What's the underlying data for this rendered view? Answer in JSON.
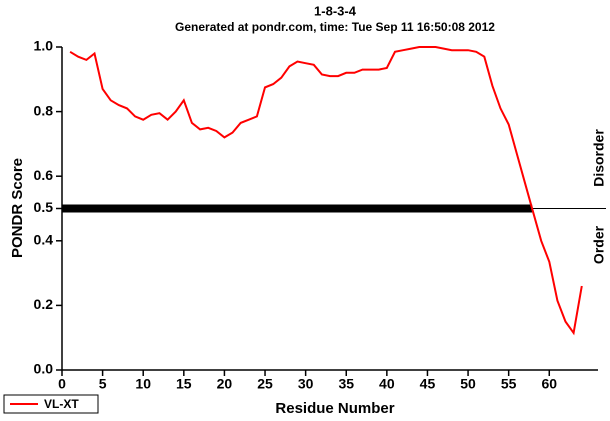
{
  "chart_data": {
    "type": "line",
    "title": "1-8-3-4",
    "subtitle": "Generated at pondr.com, time: Tue Sep 11 16:50:08 2012",
    "x_label": "Residue Number",
    "y_label": "PONDR Score",
    "upper_label": "Disorder",
    "lower_label": "Order",
    "threshold": 0.5,
    "x": [
      1,
      2,
      3,
      4,
      5,
      6,
      7,
      8,
      9,
      10,
      11,
      12,
      13,
      14,
      15,
      16,
      17,
      18,
      19,
      20,
      21,
      22,
      23,
      24,
      25,
      26,
      27,
      28,
      29,
      30,
      31,
      32,
      33,
      34,
      35,
      36,
      37,
      38,
      39,
      40,
      41,
      42,
      43,
      44,
      45,
      46,
      47,
      48,
      49,
      50,
      51,
      52,
      53,
      54,
      55,
      56,
      57,
      58,
      59,
      60,
      61,
      62,
      63,
      64
    ],
    "series": [
      {
        "name": "VL-XT",
        "color": "#ff0000",
        "values": [
          0.985,
          0.97,
          0.96,
          0.98,
          0.87,
          0.835,
          0.82,
          0.81,
          0.785,
          0.775,
          0.79,
          0.795,
          0.775,
          0.8,
          0.835,
          0.765,
          0.745,
          0.75,
          0.74,
          0.72,
          0.735,
          0.765,
          0.775,
          0.785,
          0.875,
          0.885,
          0.905,
          0.94,
          0.955,
          0.95,
          0.945,
          0.915,
          0.91,
          0.91,
          0.92,
          0.92,
          0.93,
          0.93,
          0.93,
          0.935,
          0.985,
          0.99,
          0.995,
          1.0,
          1.0,
          1.0,
          0.995,
          0.99,
          0.99,
          0.99,
          0.985,
          0.97,
          0.88,
          0.81,
          0.76,
          0.67,
          0.58,
          0.49,
          0.4,
          0.335,
          0.215,
          0.15,
          0.115,
          0.26
        ]
      }
    ],
    "xlim": [
      0,
      66
    ],
    "ylim": [
      0,
      1
    ],
    "xticks": [
      0,
      5,
      10,
      15,
      20,
      25,
      30,
      35,
      40,
      45,
      50,
      55,
      60
    ],
    "yticks": [
      {
        "value": 0,
        "label": "0.0"
      },
      0.2,
      0.4,
      0.5,
      0.6,
      0.8,
      {
        "value": 1,
        "label": "1.0"
      }
    ],
    "legend": "bottom-left"
  }
}
